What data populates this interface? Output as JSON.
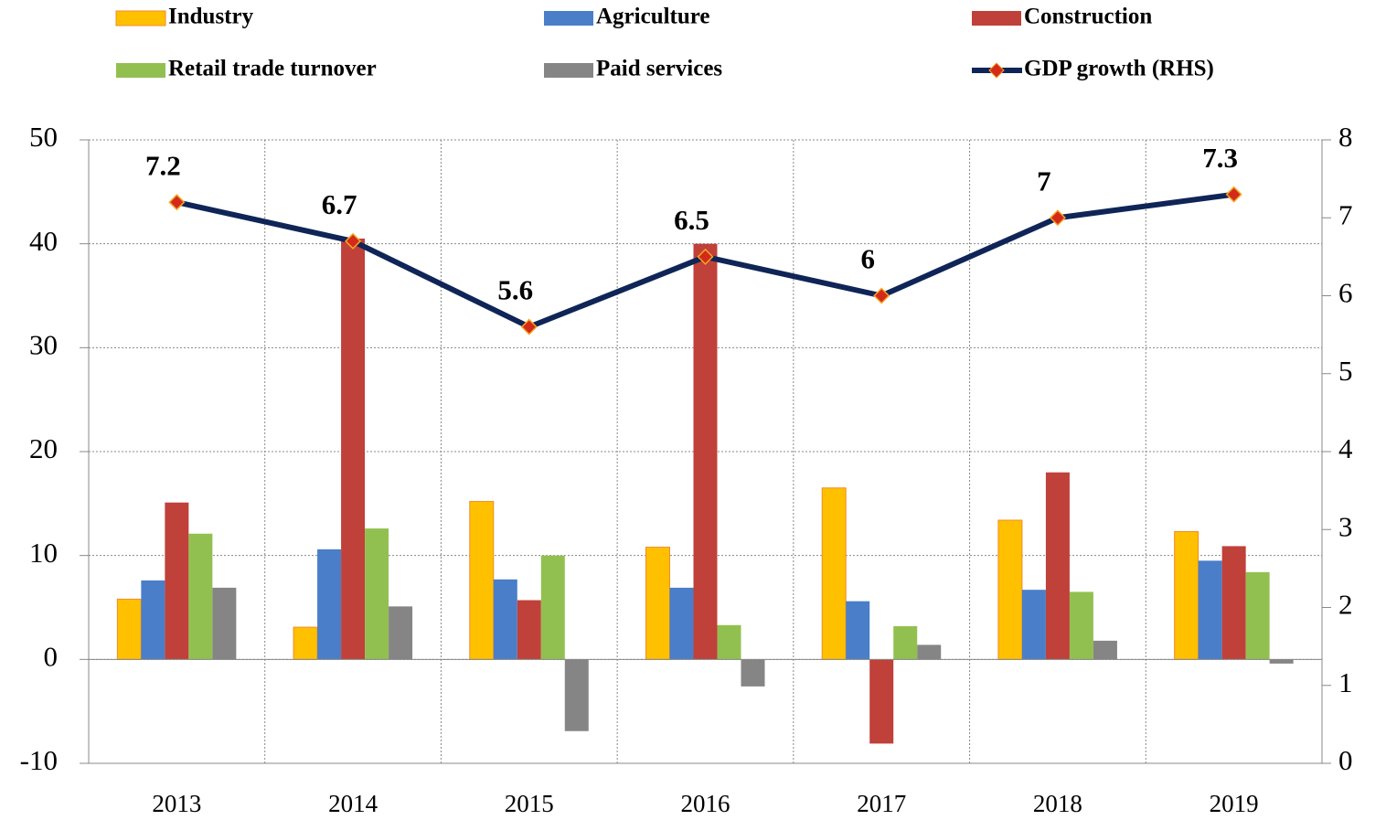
{
  "chart_data": {
    "type": "bar",
    "categories": [
      "2013",
      "2014",
      "2015",
      "2016",
      "2017",
      "2018",
      "2019"
    ],
    "series": [
      {
        "name": "Industry",
        "color": "#FFC000",
        "values": [
          5.8,
          3.1,
          15.2,
          10.8,
          16.5,
          13.4,
          12.3
        ]
      },
      {
        "name": "Agriculture",
        "color": "#4A7EC8",
        "values": [
          7.6,
          10.6,
          7.7,
          6.9,
          5.6,
          6.7,
          9.5
        ]
      },
      {
        "name": "Construction",
        "color": "#C0403A",
        "values": [
          15.1,
          40.5,
          5.7,
          40.0,
          -8.1,
          18.0,
          10.9
        ]
      },
      {
        "name": "Retail trade turnover",
        "color": "#92C050",
        "values": [
          12.1,
          12.6,
          10.0,
          3.3,
          3.2,
          6.5,
          8.4
        ]
      },
      {
        "name": "Paid services",
        "color": "#858585",
        "values": [
          6.9,
          5.1,
          -6.9,
          -2.6,
          1.4,
          1.8,
          -0.4
        ]
      },
      {
        "name": "GDP growth (RHS)",
        "color": "#0F2557",
        "marker_color": "#D42A1A",
        "type": "line",
        "axis": "y2",
        "values": [
          7.2,
          6.7,
          5.6,
          6.5,
          6,
          7,
          7.3
        ]
      }
    ],
    "ylim": [
      -10,
      50
    ],
    "yticks": [
      -10,
      0,
      10,
      20,
      30,
      40,
      50
    ],
    "y2lim": [
      0,
      8
    ],
    "y2ticks": [
      0,
      1,
      2,
      3,
      4,
      5,
      6,
      7,
      8
    ],
    "grid": true,
    "legend": "top"
  }
}
